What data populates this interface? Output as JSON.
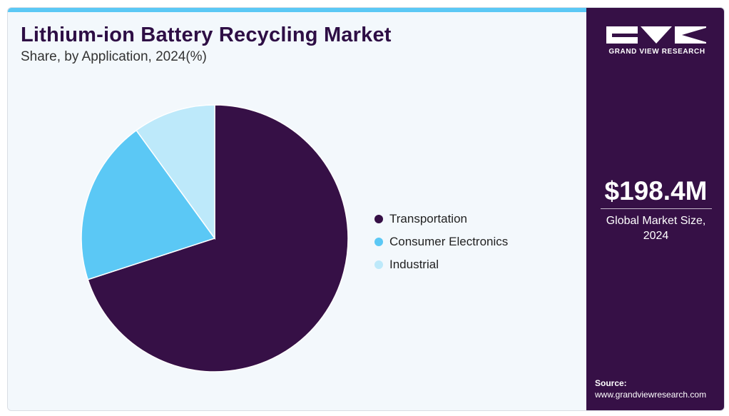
{
  "header": {
    "title": "Lithium-ion Battery Recycling Market",
    "subtitle": "Share, by Application, 2024(%)"
  },
  "chart_data": {
    "type": "pie",
    "categories": [
      "Transportation",
      "Consumer Electronics",
      "Industrial"
    ],
    "values": [
      70,
      20,
      10
    ],
    "colors": [
      "#361046",
      "#5bc8f5",
      "#bde9fa"
    ],
    "title": "Lithium-ion Battery Recycling Market",
    "subtitle": "Share, by Application, 2024(%)",
    "legend": "right",
    "start": "12 o'clock",
    "direction": "clockwise"
  },
  "sidebar": {
    "logo_text": "GRAND VIEW RESEARCH",
    "stat_value": "$198.4M",
    "stat_label": "Global Market Size, 2024",
    "source_label": "Source:",
    "source_url": "www.grandviewresearch.com",
    "background": "#361046"
  }
}
